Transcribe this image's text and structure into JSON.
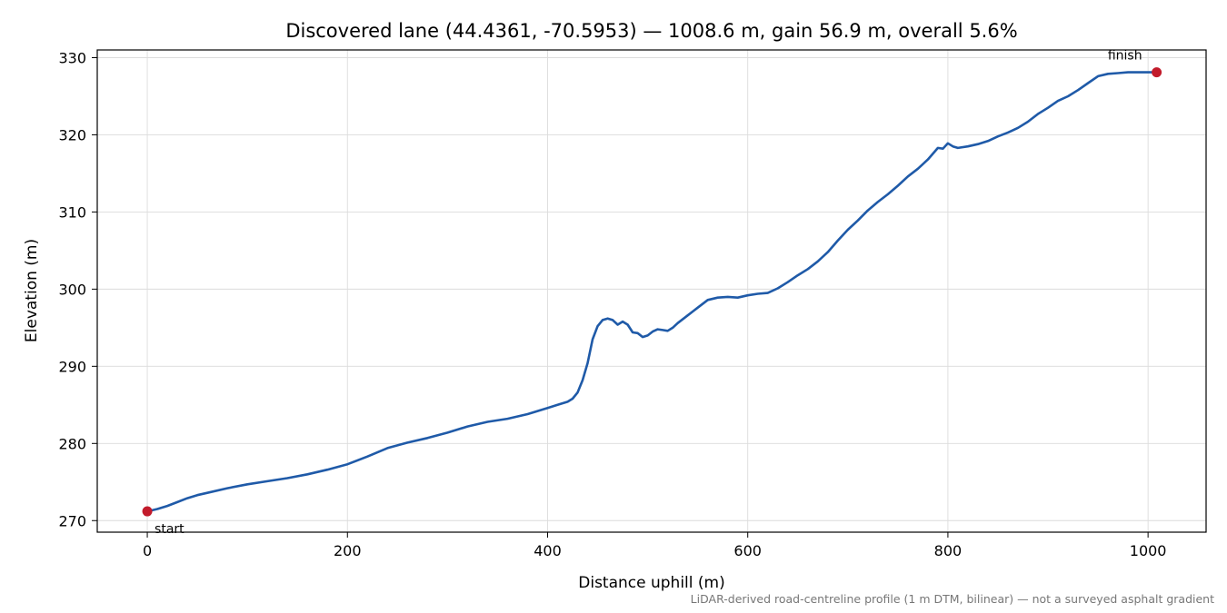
{
  "chart_data": {
    "type": "line",
    "title": "Discovered lane (44.4361, -70.5953) — 1008.6 m, gain 56.9 m, overall 5.6%",
    "xlabel": "Distance uphill (m)",
    "ylabel": "Elevation (m)",
    "xlim": [
      -50,
      1058
    ],
    "ylim": [
      268.5,
      331
    ],
    "xticks": [
      0,
      200,
      400,
      600,
      800,
      1000
    ],
    "yticks": [
      270,
      280,
      290,
      300,
      310,
      320,
      330
    ],
    "grid": true,
    "series": [
      {
        "x": [
          0,
          10,
          20,
          30,
          40,
          50,
          60,
          80,
          100,
          120,
          140,
          160,
          180,
          200,
          220,
          240,
          260,
          280,
          300,
          320,
          340,
          360,
          380,
          400,
          410,
          420,
          425,
          430,
          435,
          440,
          445,
          450,
          455,
          460,
          465,
          470,
          475,
          480,
          485,
          490,
          495,
          500,
          505,
          510,
          515,
          520,
          525,
          530,
          540,
          550,
          560,
          570,
          580,
          590,
          600,
          610,
          620,
          630,
          640,
          650,
          660,
          670,
          680,
          690,
          700,
          710,
          720,
          730,
          740,
          750,
          760,
          770,
          780,
          790,
          795,
          800,
          805,
          810,
          820,
          830,
          840,
          850,
          860,
          870,
          880,
          890,
          900,
          910,
          920,
          930,
          940,
          950,
          960,
          970,
          980,
          990,
          1000,
          1008.6
        ],
        "y": [
          271.2,
          271.5,
          271.9,
          272.4,
          272.9,
          273.3,
          273.6,
          274.2,
          274.7,
          275.1,
          275.5,
          276.0,
          276.6,
          277.3,
          278.3,
          279.4,
          280.1,
          280.7,
          281.4,
          282.2,
          282.8,
          283.2,
          283.8,
          284.6,
          285.0,
          285.4,
          285.8,
          286.6,
          288.2,
          290.4,
          293.5,
          295.2,
          296.0,
          296.2,
          296.0,
          295.4,
          295.8,
          295.4,
          294.4,
          294.3,
          293.8,
          294.0,
          294.5,
          294.8,
          294.7,
          294.6,
          295.0,
          295.6,
          296.6,
          297.6,
          298.6,
          298.9,
          299.0,
          298.9,
          299.2,
          299.4,
          299.5,
          300.1,
          300.9,
          301.8,
          302.6,
          303.6,
          304.8,
          306.3,
          307.7,
          308.9,
          310.2,
          311.3,
          312.3,
          313.4,
          314.6,
          315.6,
          316.8,
          318.3,
          318.2,
          318.9,
          318.5,
          318.3,
          318.5,
          318.8,
          319.2,
          319.8,
          320.3,
          320.9,
          321.7,
          322.7,
          323.5,
          324.4,
          325.0,
          325.8,
          326.7,
          327.6,
          327.9,
          328.0,
          328.1,
          328.1,
          328.1,
          328.1
        ],
        "color": "#1f5aa8"
      }
    ],
    "markers": [
      {
        "label": "start",
        "x": 0,
        "y": 271.2,
        "color": "#c21b2b"
      },
      {
        "label": "finish",
        "x": 1008.6,
        "y": 328.1,
        "color": "#c21b2b"
      }
    ]
  },
  "footnote": "LiDAR-derived road-centreline profile (1 m DTM, bilinear) — not a surveyed asphalt gradient"
}
